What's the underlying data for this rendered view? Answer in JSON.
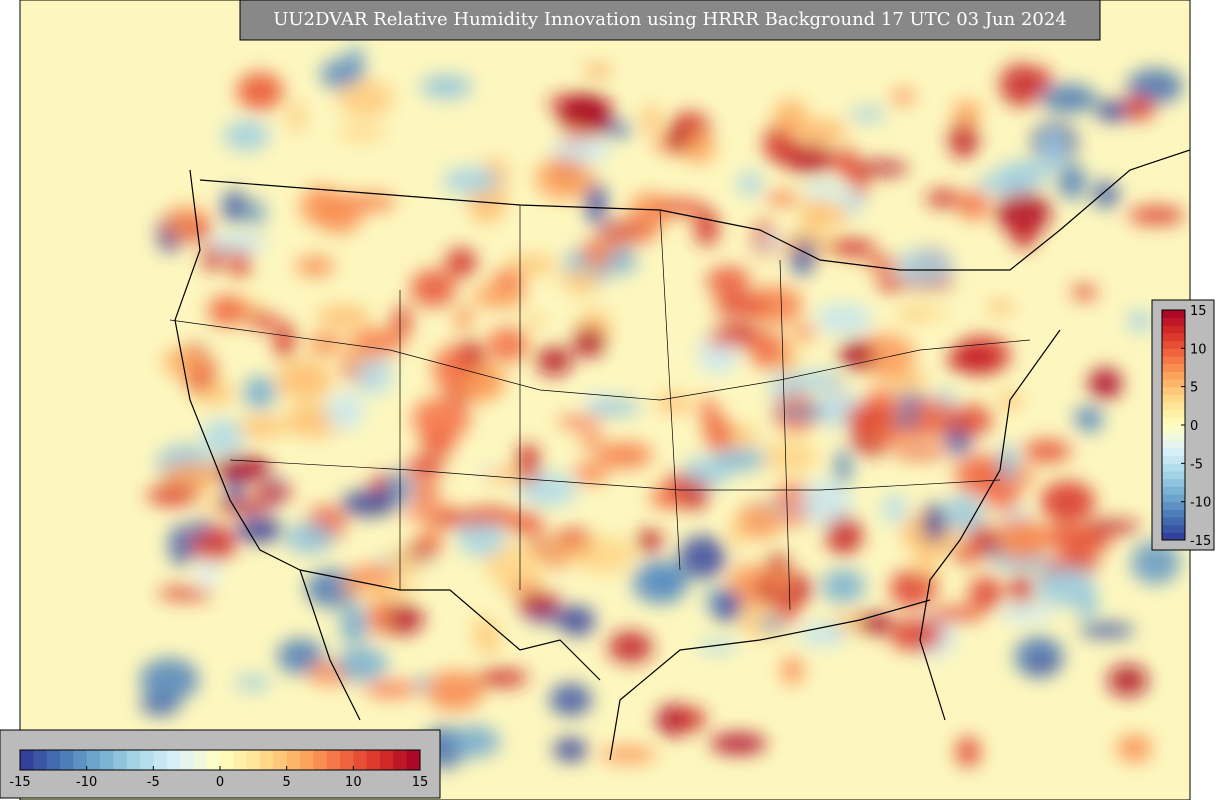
{
  "title": "UU2DVAR Relative Humidity Innovation using HRRR Background 17 UTC 03 Jun 2024",
  "colormap": [
    "#313695",
    "#4575b4",
    "#74add1",
    "#abd9e9",
    "#e0f3f8",
    "#ffffbf",
    "#fee090",
    "#fdae61",
    "#f46d43",
    "#d73027",
    "#a50026"
  ],
  "colorbars": [
    {
      "orientation": "horizontal",
      "range": [
        -15,
        15
      ],
      "ticks": [
        -15,
        -10,
        -5,
        0,
        5,
        10,
        15
      ]
    },
    {
      "orientation": "vertical",
      "range": [
        -15,
        15
      ],
      "ticks": [
        15,
        10,
        5,
        0,
        -5,
        -10,
        -15
      ]
    }
  ]
}
